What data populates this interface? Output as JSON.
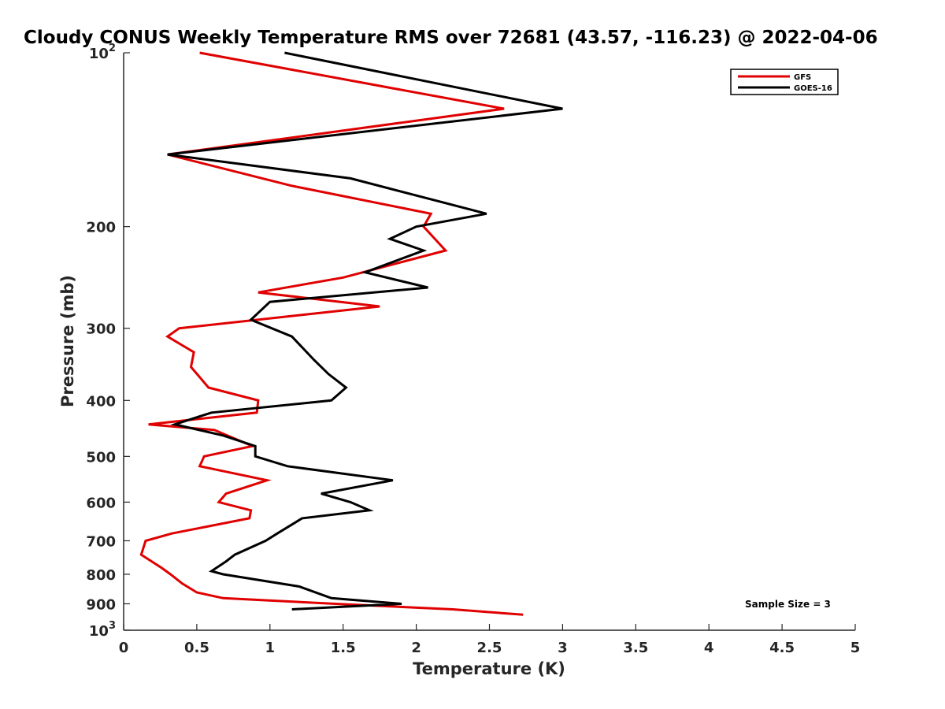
{
  "chart_data": {
    "type": "line",
    "title": "Cloudy CONUS Weekly Temperature RMS over 72681 (43.57, -116.23) @ 2022-04-06",
    "xlabel": "Temperature (K)",
    "ylabel": "Pressure (mb)",
    "xlim": [
      0,
      5
    ],
    "ylim": [
      100,
      1000
    ],
    "y_scale": "log",
    "y_reversed": true,
    "grid": false,
    "legend_position": "top-right",
    "x_ticks": [
      0,
      0.5,
      1,
      1.5,
      2,
      2.5,
      3,
      3.5,
      4,
      4.5,
      5
    ],
    "x_tick_labels": [
      "0",
      "0.5",
      "1",
      "1.5",
      "2",
      "2.5",
      "3",
      "3.5",
      "4",
      "4.5",
      "5"
    ],
    "y_ticks": [
      {
        "value": 100,
        "base": "10",
        "exp": "2"
      },
      {
        "value": 200,
        "label": "200"
      },
      {
        "value": 300,
        "label": "300"
      },
      {
        "value": 400,
        "label": "400"
      },
      {
        "value": 500,
        "label": "500"
      },
      {
        "value": 600,
        "label": "600"
      },
      {
        "value": 700,
        "label": "700"
      },
      {
        "value": 800,
        "label": "800"
      },
      {
        "value": 900,
        "label": "900"
      },
      {
        "value": 1000,
        "base": "10",
        "exp": "3"
      }
    ],
    "annotation": "Sample Size = 3",
    "series": [
      {
        "name": "GFS",
        "color": "#e00000",
        "points": [
          [
            0.52,
            100
          ],
          [
            2.6,
            125
          ],
          [
            0.3,
            150
          ],
          [
            1.15,
            170
          ],
          [
            2.1,
            190
          ],
          [
            2.05,
            200
          ],
          [
            2.2,
            220
          ],
          [
            1.5,
            245
          ],
          [
            0.92,
            260
          ],
          [
            1.75,
            275
          ],
          [
            0.38,
            300
          ],
          [
            0.3,
            310
          ],
          [
            0.48,
            330
          ],
          [
            0.46,
            350
          ],
          [
            0.58,
            380
          ],
          [
            0.92,
            400
          ],
          [
            0.91,
            420
          ],
          [
            0.17,
            440
          ],
          [
            0.62,
            450
          ],
          [
            0.88,
            480
          ],
          [
            0.55,
            500
          ],
          [
            0.52,
            520
          ],
          [
            0.98,
            550
          ],
          [
            0.7,
            580
          ],
          [
            0.65,
            600
          ],
          [
            0.87,
            620
          ],
          [
            0.86,
            640
          ],
          [
            0.33,
            680
          ],
          [
            0.15,
            700
          ],
          [
            0.12,
            740
          ],
          [
            0.26,
            780
          ],
          [
            0.32,
            800
          ],
          [
            0.4,
            830
          ],
          [
            0.5,
            860
          ],
          [
            0.68,
            880
          ],
          [
            1.45,
            900
          ],
          [
            2.25,
            920
          ],
          [
            2.73,
            940
          ]
        ]
      },
      {
        "name": "GOES-16",
        "color": "#000000",
        "points": [
          [
            1.1,
            100
          ],
          [
            3.0,
            125
          ],
          [
            0.3,
            150
          ],
          [
            1.55,
            165
          ],
          [
            2.48,
            190
          ],
          [
            2.0,
            200
          ],
          [
            1.82,
            210
          ],
          [
            2.05,
            220
          ],
          [
            1.65,
            240
          ],
          [
            2.08,
            255
          ],
          [
            1.0,
            270
          ],
          [
            0.87,
            290
          ],
          [
            1.15,
            310
          ],
          [
            1.3,
            340
          ],
          [
            1.4,
            360
          ],
          [
            1.52,
            380
          ],
          [
            1.42,
            400
          ],
          [
            0.6,
            420
          ],
          [
            0.35,
            440
          ],
          [
            0.68,
            460
          ],
          [
            0.9,
            480
          ],
          [
            0.9,
            500
          ],
          [
            1.12,
            520
          ],
          [
            1.84,
            550
          ],
          [
            1.35,
            580
          ],
          [
            1.55,
            600
          ],
          [
            1.68,
            620
          ],
          [
            1.22,
            640
          ],
          [
            1.05,
            680
          ],
          [
            0.97,
            700
          ],
          [
            0.76,
            740
          ],
          [
            0.7,
            760
          ],
          [
            0.6,
            790
          ],
          [
            0.68,
            800
          ],
          [
            1.2,
            840
          ],
          [
            1.42,
            880
          ],
          [
            1.9,
            900
          ],
          [
            1.15,
            920
          ]
        ]
      }
    ]
  }
}
